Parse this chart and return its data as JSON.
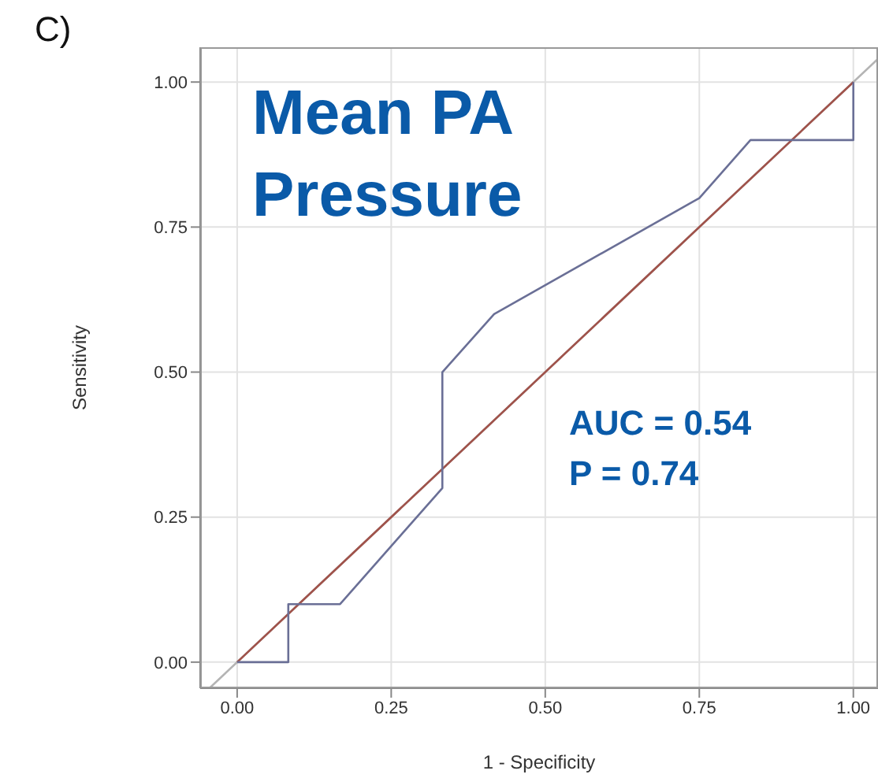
{
  "chart_data": {
    "type": "line",
    "xlabel": "1 - Specificity",
    "ylabel": "Sensitivity",
    "annotations": [
      "C)",
      "Mean PA Pressure",
      "AUC = 0.54",
      "P = 0.74"
    ],
    "xlim": [
      -0.06,
      1.04
    ],
    "ylim": [
      -0.045,
      1.06
    ],
    "xticks": [
      {
        "value": 0,
        "label": "0.00"
      },
      {
        "value": 0.25,
        "label": "0.25"
      },
      {
        "value": 0.5,
        "label": "0.50"
      },
      {
        "value": 0.75,
        "label": "0.75"
      },
      {
        "value": 1,
        "label": "1.00"
      }
    ],
    "yticks": [
      {
        "value": 0,
        "label": "0.00"
      },
      {
        "value": 0.25,
        "label": "0.25"
      },
      {
        "value": 0.5,
        "label": "0.50"
      },
      {
        "value": 0.75,
        "label": "0.75"
      },
      {
        "value": 1,
        "label": "1.00"
      }
    ],
    "grid": true,
    "marker": "none",
    "line_style": "solid",
    "series": [
      {
        "color": "#b4b4b4",
        "x": [
          -0.045,
          1.04
        ],
        "values": [
          -0.045,
          1.04
        ]
      },
      {
        "color": "#a0524a",
        "x": [
          0,
          1
        ],
        "values": [
          0,
          1
        ]
      },
      {
        "color": "#6a6f96",
        "x": [
          0,
          0.083,
          0.083,
          0.167,
          0.333,
          0.333,
          0.417,
          0.75,
          0.833,
          1,
          1
        ],
        "values": [
          0,
          0,
          0.1,
          0.1,
          0.3,
          0.5,
          0.6,
          0.8,
          0.9,
          0.9,
          1
        ]
      }
    ]
  }
}
